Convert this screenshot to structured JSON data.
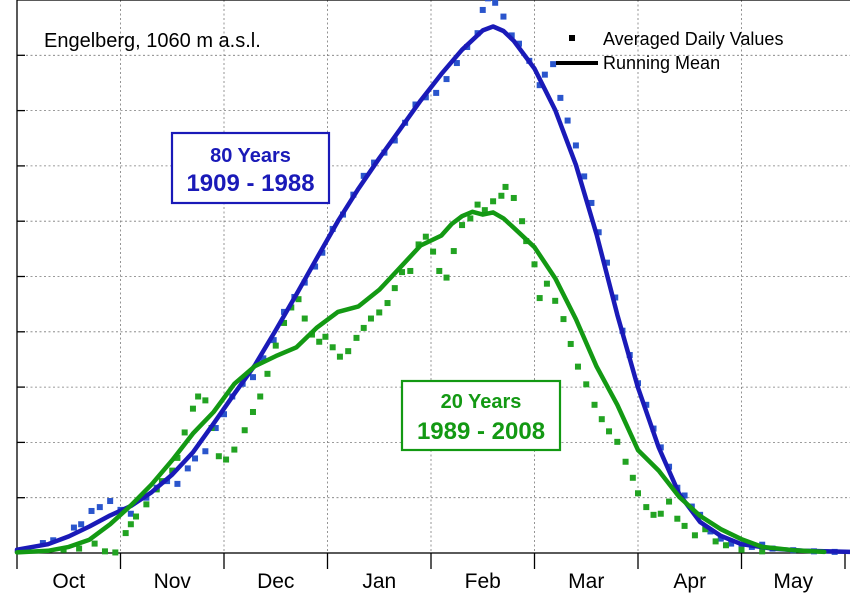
{
  "chart_data": {
    "type": "scatter",
    "title": "Engelberg, 1060 m a.s.l.",
    "xlabel": "",
    "ylabel": "",
    "x_tick_labels": [
      "Oct",
      "Nov",
      "Dec",
      "Jan",
      "Feb",
      "Mar",
      "Apr",
      "May"
    ],
    "xlim": [
      0,
      8.07
    ],
    "ylim": [
      0,
      100
    ],
    "grid": true,
    "legend_position": "top-right",
    "legend": {
      "points_label": "Averaged Daily Values",
      "line_label": "Running Mean"
    },
    "series": [
      {
        "name": "80 Years 1909 - 1988",
        "box_line1": "80 Years",
        "box_line2": "1909 - 1988",
        "color": "#1a1ab8",
        "point_color": "#2a55cc",
        "running_mean": [
          [
            -0.2,
            0.2
          ],
          [
            0,
            0.6
          ],
          [
            0.3,
            1.6
          ],
          [
            0.5,
            3.0
          ],
          [
            0.7,
            4.8
          ],
          [
            0.9,
            6.8
          ],
          [
            1.1,
            8.5
          ],
          [
            1.3,
            11.0
          ],
          [
            1.5,
            14.2
          ],
          [
            1.7,
            18.2
          ],
          [
            1.9,
            23.4
          ],
          [
            2.1,
            28.8
          ],
          [
            2.3,
            34.0
          ],
          [
            2.5,
            40.3
          ],
          [
            2.7,
            46.8
          ],
          [
            2.9,
            53.4
          ],
          [
            3.1,
            60.0
          ],
          [
            3.3,
            65.9
          ],
          [
            3.5,
            71.4
          ],
          [
            3.7,
            76.6
          ],
          [
            3.9,
            81.8
          ],
          [
            4.1,
            86.6
          ],
          [
            4.3,
            91.0
          ],
          [
            4.5,
            94.5
          ],
          [
            4.6,
            95.2
          ],
          [
            4.7,
            94.4
          ],
          [
            4.8,
            92.6
          ],
          [
            5.0,
            87.6
          ],
          [
            5.2,
            80.1
          ],
          [
            5.4,
            70.2
          ],
          [
            5.6,
            57.6
          ],
          [
            5.8,
            43.1
          ],
          [
            6.0,
            29.9
          ],
          [
            6.2,
            19.1
          ],
          [
            6.4,
            10.6
          ],
          [
            6.6,
            5.6
          ],
          [
            6.8,
            3.1
          ],
          [
            7.0,
            1.6
          ],
          [
            7.3,
            0.8
          ],
          [
            7.6,
            0.4
          ],
          [
            8.07,
            0.2
          ]
        ],
        "daily": [
          [
            0.25,
            1.8
          ],
          [
            0.35,
            2.3
          ],
          [
            0.55,
            4.6
          ],
          [
            0.62,
            5.2
          ],
          [
            0.72,
            7.6
          ],
          [
            0.8,
            8.3
          ],
          [
            0.9,
            9.4
          ],
          [
            1.0,
            7.8
          ],
          [
            1.1,
            7.1
          ],
          [
            1.25,
            10.0
          ],
          [
            1.35,
            11.8
          ],
          [
            1.45,
            13.0
          ],
          [
            1.55,
            12.5
          ],
          [
            1.65,
            15.3
          ],
          [
            1.72,
            17.1
          ],
          [
            1.82,
            18.4
          ],
          [
            1.92,
            22.6
          ],
          [
            2.0,
            25.1
          ],
          [
            2.08,
            28.3
          ],
          [
            2.18,
            30.6
          ],
          [
            2.28,
            31.8
          ],
          [
            2.38,
            35.2
          ],
          [
            2.48,
            38.5
          ],
          [
            2.58,
            43.6
          ],
          [
            2.68,
            46.3
          ],
          [
            2.78,
            48.9
          ],
          [
            2.88,
            51.8
          ],
          [
            2.95,
            54.3
          ],
          [
            3.05,
            58.6
          ],
          [
            3.15,
            61.2
          ],
          [
            3.25,
            64.8
          ],
          [
            3.35,
            68.2
          ],
          [
            3.45,
            70.6
          ],
          [
            3.55,
            72.4
          ],
          [
            3.65,
            74.6
          ],
          [
            3.75,
            77.8
          ],
          [
            3.85,
            81.1
          ],
          [
            3.95,
            82.4
          ],
          [
            4.05,
            83.2
          ],
          [
            4.15,
            85.7
          ],
          [
            4.25,
            88.6
          ],
          [
            4.35,
            91.5
          ],
          [
            4.45,
            94.0
          ],
          [
            4.5,
            98.2
          ],
          [
            4.55,
            100.3
          ],
          [
            4.62,
            99.5
          ],
          [
            4.7,
            97.0
          ],
          [
            4.78,
            93.6
          ],
          [
            4.85,
            92.1
          ],
          [
            4.95,
            89.0
          ],
          [
            5.05,
            84.6
          ],
          [
            5.1,
            86.5
          ],
          [
            5.18,
            88.4
          ],
          [
            5.25,
            82.3
          ],
          [
            5.32,
            78.2
          ],
          [
            5.4,
            73.7
          ],
          [
            5.48,
            68.1
          ],
          [
            5.55,
            63.3
          ],
          [
            5.62,
            58.0
          ],
          [
            5.7,
            52.5
          ],
          [
            5.78,
            46.2
          ],
          [
            5.85,
            40.2
          ],
          [
            5.92,
            35.8
          ],
          [
            6.0,
            30.7
          ],
          [
            6.08,
            26.8
          ],
          [
            6.15,
            22.5
          ],
          [
            6.22,
            19.1
          ],
          [
            6.3,
            15.6
          ],
          [
            6.38,
            11.8
          ],
          [
            6.45,
            10.4
          ],
          [
            6.52,
            8.4
          ],
          [
            6.6,
            6.9
          ],
          [
            6.7,
            3.9
          ],
          [
            6.8,
            2.6
          ],
          [
            6.9,
            1.7
          ],
          [
            7.0,
            1.5
          ],
          [
            7.1,
            1.1
          ],
          [
            7.2,
            1.5
          ],
          [
            7.3,
            0.8
          ],
          [
            7.5,
            0.5
          ],
          [
            7.7,
            0.3
          ],
          [
            7.9,
            0.2
          ]
        ]
      },
      {
        "name": "20 Years 1989 - 2008",
        "box_line1": "20 Years",
        "box_line2": "1989 - 2008",
        "color": "#139913",
        "point_color": "#22a322",
        "running_mean": [
          [
            0,
            0.1
          ],
          [
            0.3,
            0.4
          ],
          [
            0.5,
            1.1
          ],
          [
            0.7,
            2.4
          ],
          [
            0.9,
            5.2
          ],
          [
            1.1,
            8.6
          ],
          [
            1.3,
            12.4
          ],
          [
            1.5,
            16.8
          ],
          [
            1.7,
            21.6
          ],
          [
            1.9,
            25.5
          ],
          [
            2.1,
            30.6
          ],
          [
            2.3,
            33.8
          ],
          [
            2.5,
            35.6
          ],
          [
            2.7,
            37.2
          ],
          [
            2.9,
            40.8
          ],
          [
            3.1,
            43.6
          ],
          [
            3.3,
            44.6
          ],
          [
            3.5,
            47.6
          ],
          [
            3.7,
            51.6
          ],
          [
            3.9,
            55.6
          ],
          [
            4.1,
            57.4
          ],
          [
            4.2,
            59.5
          ],
          [
            4.3,
            60.9
          ],
          [
            4.4,
            61.7
          ],
          [
            4.5,
            61.2
          ],
          [
            4.6,
            61.6
          ],
          [
            4.7,
            60.5
          ],
          [
            4.8,
            58.8
          ],
          [
            5.0,
            55.3
          ],
          [
            5.2,
            49.7
          ],
          [
            5.4,
            42.3
          ],
          [
            5.6,
            33.7
          ],
          [
            5.8,
            26.8
          ],
          [
            6.0,
            18.6
          ],
          [
            6.2,
            14.9
          ],
          [
            6.4,
            10.1
          ],
          [
            6.6,
            6.7
          ],
          [
            6.8,
            4.3
          ],
          [
            7.0,
            2.5
          ],
          [
            7.2,
            1.1
          ],
          [
            7.5,
            0.5
          ],
          [
            7.8,
            0.2
          ]
        ],
        "daily": [
          [
            0.45,
            0.6
          ],
          [
            0.6,
            0.8
          ],
          [
            0.75,
            1.7
          ],
          [
            0.85,
            0.3
          ],
          [
            0.95,
            0.1
          ],
          [
            1.05,
            3.6
          ],
          [
            1.1,
            5.2
          ],
          [
            1.15,
            6.6
          ],
          [
            1.25,
            8.8
          ],
          [
            1.35,
            11.5
          ],
          [
            1.4,
            13.0
          ],
          [
            1.5,
            14.9
          ],
          [
            1.55,
            17.2
          ],
          [
            1.62,
            21.8
          ],
          [
            1.7,
            26.1
          ],
          [
            1.75,
            28.3
          ],
          [
            1.82,
            27.6
          ],
          [
            1.88,
            22.6
          ],
          [
            1.95,
            17.5
          ],
          [
            2.02,
            16.9
          ],
          [
            2.1,
            18.7
          ],
          [
            2.2,
            22.2
          ],
          [
            2.28,
            25.5
          ],
          [
            2.35,
            28.3
          ],
          [
            2.42,
            32.4
          ],
          [
            2.5,
            37.5
          ],
          [
            2.58,
            41.6
          ],
          [
            2.65,
            44.4
          ],
          [
            2.72,
            45.9
          ],
          [
            2.78,
            42.4
          ],
          [
            2.85,
            39.5
          ],
          [
            2.92,
            38.2
          ],
          [
            2.98,
            39.1
          ],
          [
            3.05,
            37.2
          ],
          [
            3.12,
            35.5
          ],
          [
            3.2,
            36.5
          ],
          [
            3.28,
            38.9
          ],
          [
            3.35,
            40.7
          ],
          [
            3.42,
            42.4
          ],
          [
            3.5,
            43.5
          ],
          [
            3.58,
            45.2
          ],
          [
            3.65,
            47.9
          ],
          [
            3.72,
            50.8
          ],
          [
            3.8,
            51.0
          ],
          [
            3.88,
            55.8
          ],
          [
            3.95,
            57.2
          ],
          [
            4.02,
            54.5
          ],
          [
            4.08,
            51.0
          ],
          [
            4.15,
            49.8
          ],
          [
            4.22,
            54.6
          ],
          [
            4.3,
            59.3
          ],
          [
            4.38,
            60.5
          ],
          [
            4.45,
            63.0
          ],
          [
            4.52,
            62.0
          ],
          [
            4.6,
            63.6
          ],
          [
            4.68,
            64.6
          ],
          [
            4.72,
            66.2
          ],
          [
            4.8,
            64.2
          ],
          [
            4.88,
            60.0
          ],
          [
            4.92,
            56.4
          ],
          [
            5.0,
            52.2
          ],
          [
            5.05,
            46.1
          ],
          [
            5.12,
            48.7
          ],
          [
            5.2,
            45.6
          ],
          [
            5.28,
            42.3
          ],
          [
            5.35,
            37.8
          ],
          [
            5.42,
            33.7
          ],
          [
            5.5,
            30.5
          ],
          [
            5.58,
            26.8
          ],
          [
            5.65,
            24.2
          ],
          [
            5.72,
            22.0
          ],
          [
            5.8,
            20.1
          ],
          [
            5.88,
            16.5
          ],
          [
            5.95,
            13.6
          ],
          [
            6.0,
            10.8
          ],
          [
            6.08,
            8.3
          ],
          [
            6.15,
            6.9
          ],
          [
            6.22,
            7.1
          ],
          [
            6.3,
            9.3
          ],
          [
            6.38,
            6.2
          ],
          [
            6.45,
            4.9
          ],
          [
            6.55,
            3.2
          ],
          [
            6.65,
            4.3
          ],
          [
            6.75,
            2.1
          ],
          [
            6.85,
            1.4
          ],
          [
            7.0,
            0.6
          ],
          [
            7.2,
            0.3
          ]
        ]
      }
    ]
  }
}
